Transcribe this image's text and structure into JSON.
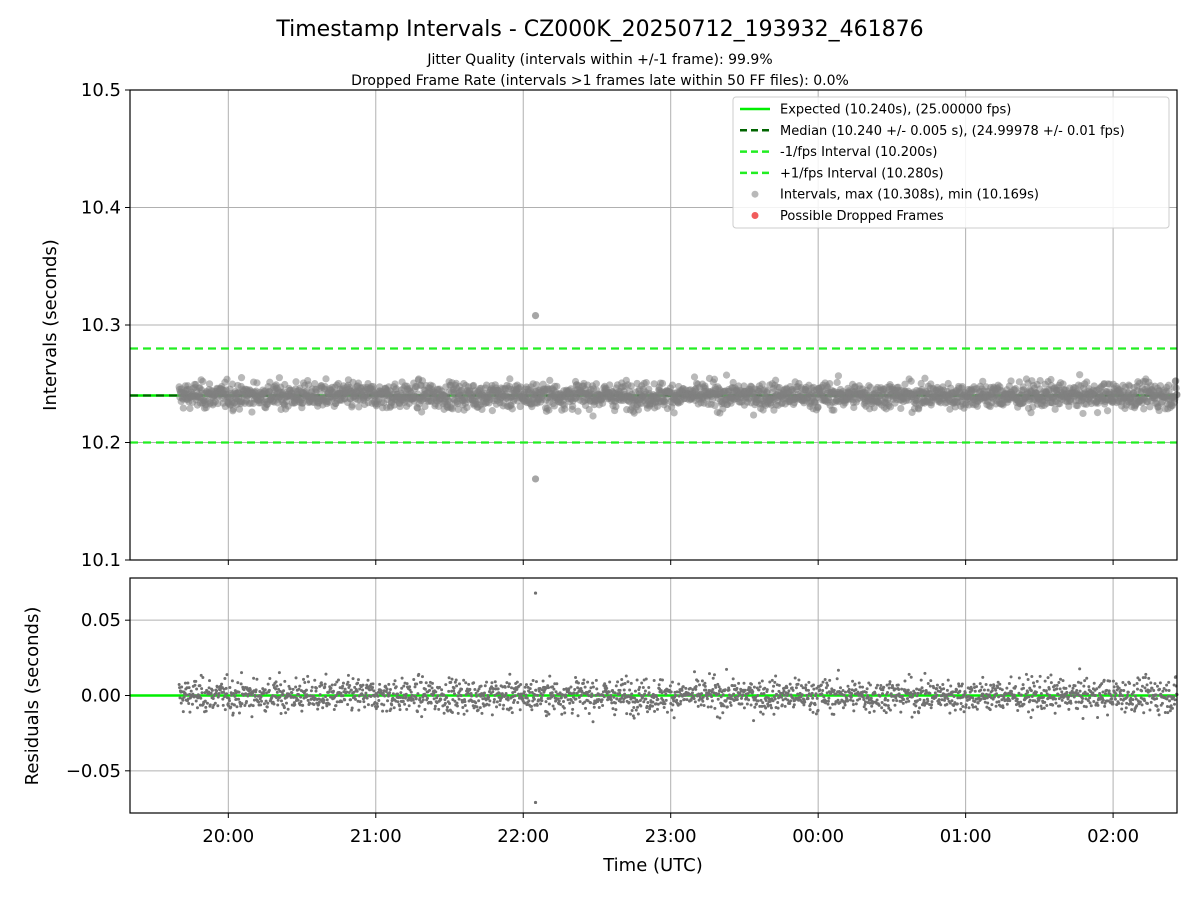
{
  "figure": {
    "title": "Timestamp Intervals - CZ000K_20250712_193932_461876",
    "subtitle_1": "Jitter Quality (intervals within +/-1 frame): 99.9%",
    "subtitle_2": "Dropped Frame Rate (intervals >1 frames late within 50 FF files): 0.0%",
    "xlabel": "Time (UTC)"
  },
  "colors": {
    "expected": "#00ee00",
    "median": "#006400",
    "interval_bounds": "#22ee22",
    "points": "#808080",
    "dropped": "#ee3333",
    "grid": "#b0b0b0"
  },
  "chart_data": [
    {
      "type": "scatter",
      "name": "intervals",
      "ylabel": "Intervals (seconds)",
      "xlim": [
        "19:20",
        "02:26"
      ],
      "ylim": [
        10.1,
        10.5
      ],
      "yticks": [
        "10.1",
        "10.2",
        "10.3",
        "10.4",
        "10.5"
      ],
      "xticks": [
        "20:00",
        "21:00",
        "22:00",
        "23:00",
        "00:00",
        "01:00",
        "02:00"
      ],
      "grid": true,
      "legend_position": "top-right",
      "reference_lines": [
        {
          "name": "Expected (10.240s), (25.00000 fps)",
          "y": 10.24,
          "style": "solid",
          "color": "#00ee00"
        },
        {
          "name": "Median (10.240 +/- 0.005 s), (24.99978 +/- 0.01 fps)",
          "y": 10.24,
          "style": "dashed",
          "color": "#006400"
        },
        {
          "name": "-1/fps Interval (10.200s)",
          "y": 10.2,
          "style": "dashed",
          "color": "#22ee22"
        },
        {
          "name": "+1/fps Interval (10.280s)",
          "y": 10.28,
          "style": "dashed",
          "color": "#22ee22"
        }
      ],
      "series": [
        {
          "name": "Intervals, max (10.308s), min (10.169s)",
          "color": "#808080",
          "max": 10.308,
          "min": 10.169,
          "x_range": [
            "19:40",
            "02:26"
          ],
          "median": 10.24,
          "spread_sd": 0.0055
        },
        {
          "name": "Possible Dropped Frames",
          "color": "#ee3333",
          "values": []
        }
      ],
      "notable_points": [
        {
          "x": "22:05",
          "y": 10.308
        },
        {
          "x": "22:05",
          "y": 10.169
        }
      ]
    },
    {
      "type": "scatter",
      "name": "residuals",
      "ylabel": "Residuals (seconds)",
      "xlabel": "Time (UTC)",
      "xlim": [
        "19:20",
        "02:26"
      ],
      "ylim": [
        -0.078,
        0.078
      ],
      "yticks": [
        "−0.05",
        "0.00",
        "0.05"
      ],
      "ytick_values": [
        -0.05,
        0.0,
        0.05
      ],
      "xticks": [
        "20:00",
        "21:00",
        "22:00",
        "23:00",
        "00:00",
        "01:00",
        "02:00"
      ],
      "grid": true,
      "reference_line_y": 0.0,
      "series": [
        {
          "name": "residuals",
          "color": "#707070",
          "max": 0.068,
          "min": -0.071,
          "spread_sd": 0.0055
        }
      ]
    }
  ]
}
